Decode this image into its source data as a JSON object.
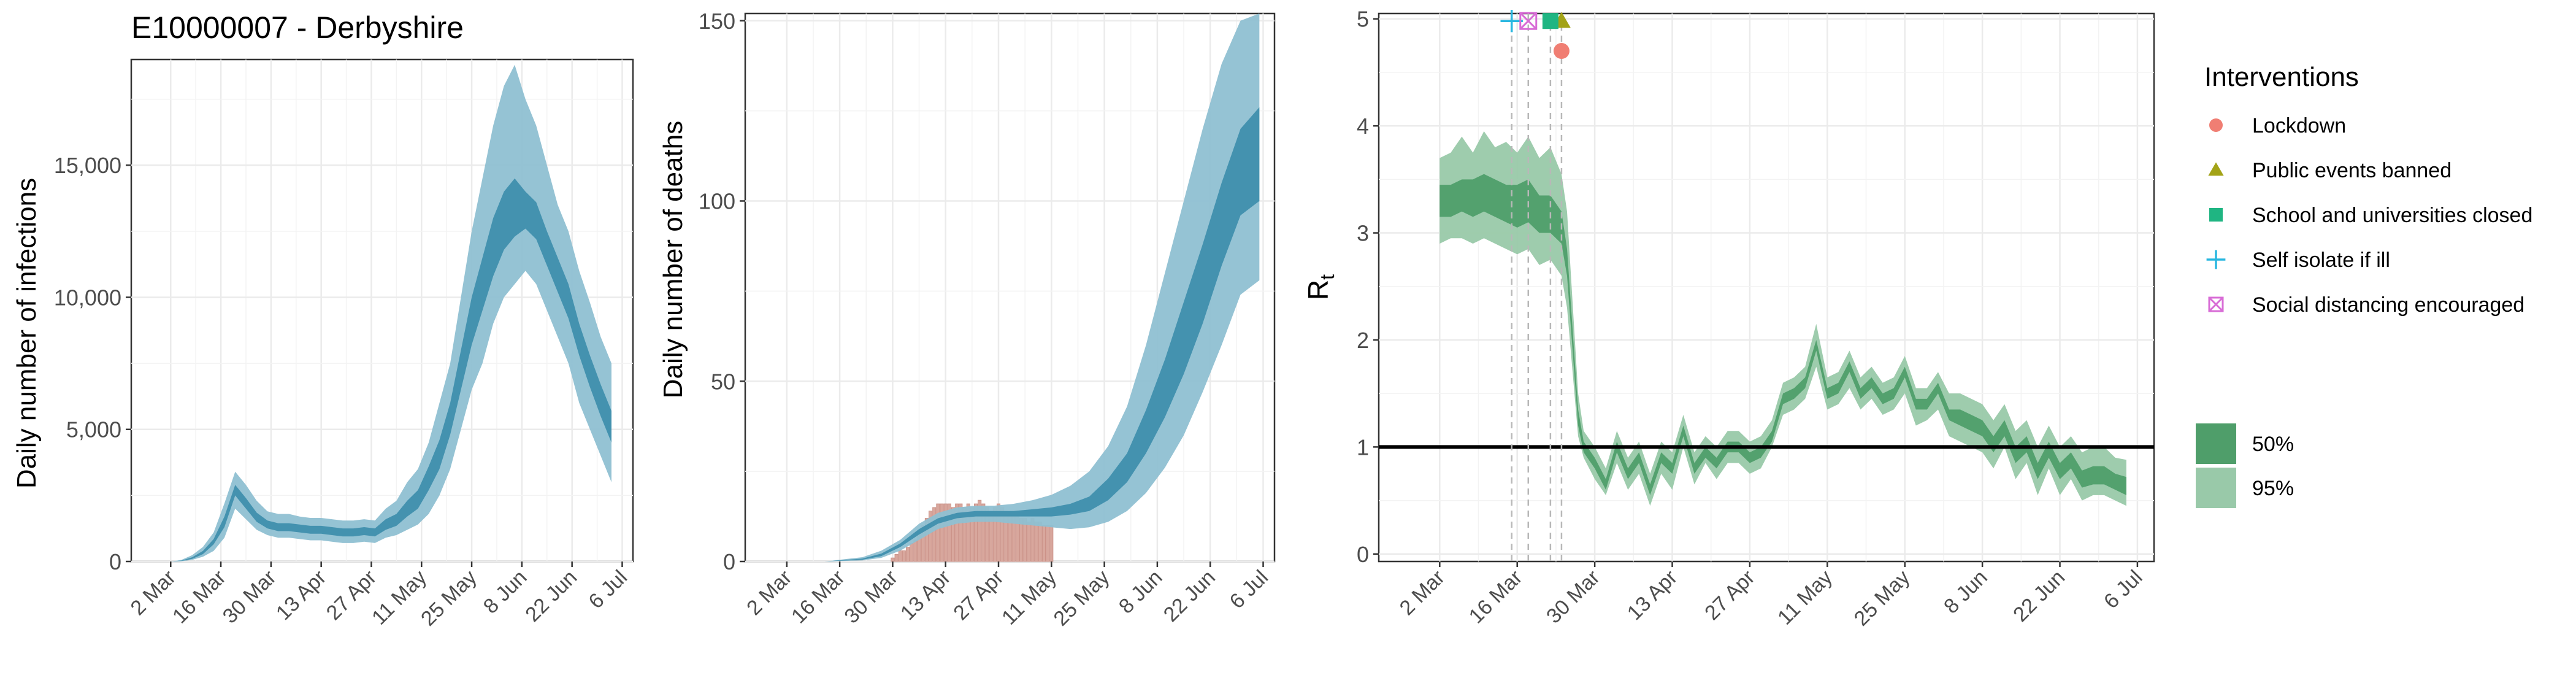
{
  "chart_data": [
    {
      "type": "area",
      "title": "E10000007 - Derbyshire",
      "ylabel": "Daily number of infections",
      "xlabel": "",
      "x_tick_labels": [
        "2 Mar",
        "16 Mar",
        "30 Mar",
        "13 Apr",
        "27 Apr",
        "11 May",
        "25 May",
        "8 Jun",
        "22 Jun",
        "6 Jul"
      ],
      "x_tick_days": [
        0,
        14,
        28,
        42,
        56,
        70,
        84,
        98,
        112,
        126
      ],
      "xlim_days": [
        -11,
        129
      ],
      "ylim": [
        0,
        19000
      ],
      "y_ticks": [
        0,
        5000,
        10000,
        15000
      ],
      "y_tick_labels": [
        "0",
        "5,000",
        "10,000",
        "15,000"
      ],
      "grid": true,
      "colors": {
        "band_95": "#8fc0d2",
        "band_50": "#3f8fad"
      },
      "bands": {
        "day": [
          0,
          3,
          6,
          9,
          12,
          15,
          18,
          21,
          24,
          27,
          30,
          33,
          36,
          39,
          42,
          45,
          48,
          51,
          54,
          57,
          60,
          63,
          66,
          69,
          72,
          75,
          78,
          81,
          84,
          87,
          90,
          93,
          96,
          99,
          102,
          105,
          108,
          111,
          114,
          117,
          120,
          123
        ],
        "lo95": [
          0,
          10,
          60,
          180,
          400,
          900,
          2000,
          1600,
          1200,
          1000,
          900,
          900,
          850,
          800,
          800,
          750,
          700,
          700,
          750,
          700,
          900,
          1000,
          1200,
          1400,
          1800,
          2500,
          3500,
          5000,
          6500,
          7500,
          9000,
          10000,
          10500,
          11000,
          10500,
          9500,
          8500,
          7500,
          6000,
          5000,
          4000,
          3000
        ],
        "lo50": [
          0,
          20,
          100,
          280,
          650,
          1300,
          2500,
          2000,
          1500,
          1250,
          1150,
          1150,
          1100,
          1050,
          1050,
          1000,
          950,
          950,
          1000,
          950,
          1200,
          1350,
          1700,
          2000,
          2700,
          3500,
          4800,
          6500,
          8200,
          9500,
          10800,
          11800,
          12300,
          12600,
          12200,
          11200,
          10200,
          9200,
          7800,
          6600,
          5500,
          4500
        ],
        "hi50": [
          0,
          35,
          160,
          400,
          850,
          1700,
          2900,
          2400,
          1850,
          1550,
          1450,
          1450,
          1400,
          1350,
          1350,
          1300,
          1250,
          1250,
          1300,
          1250,
          1600,
          1800,
          2300,
          2700,
          3600,
          4600,
          6000,
          8000,
          10000,
          11500,
          13000,
          14000,
          14500,
          14000,
          13600,
          12500,
          11500,
          10500,
          9000,
          7800,
          6700,
          5700
        ],
        "hi95": [
          0,
          60,
          240,
          550,
          1100,
          2200,
          3400,
          2900,
          2300,
          1900,
          1800,
          1800,
          1700,
          1650,
          1650,
          1600,
          1550,
          1550,
          1600,
          1550,
          2000,
          2300,
          3000,
          3500,
          4500,
          6000,
          7500,
          10000,
          12500,
          14500,
          16500,
          18000,
          18800,
          17500,
          16500,
          15000,
          13500,
          12500,
          11000,
          9800,
          8500,
          7500
        ]
      }
    },
    {
      "type": "area",
      "title": "",
      "ylabel": "Daily number of deaths",
      "xlabel": "",
      "x_tick_labels": [
        "2 Mar",
        "16 Mar",
        "30 Mar",
        "13 Apr",
        "27 Apr",
        "11 May",
        "25 May",
        "8 Jun",
        "22 Jun",
        "6 Jul"
      ],
      "x_tick_days": [
        0,
        14,
        28,
        42,
        56,
        70,
        84,
        98,
        112,
        126
      ],
      "xlim_days": [
        -11,
        129
      ],
      "ylim": [
        0,
        152
      ],
      "y_ticks": [
        0,
        50,
        100,
        150
      ],
      "y_tick_labels": [
        "0",
        "50",
        "100",
        "150"
      ],
      "grid": true,
      "colors": {
        "band_95": "#8fc0d2",
        "band_50": "#3f8fad",
        "bars": "#d8a79d"
      },
      "observed": {
        "day": [
          28,
          29,
          30,
          31,
          32,
          33,
          34,
          35,
          36,
          37,
          38,
          39,
          40,
          41,
          42,
          43,
          44,
          45,
          46,
          47,
          48,
          49,
          50,
          51,
          52,
          53,
          54,
          55,
          56,
          57,
          58,
          59,
          60,
          61,
          62,
          63,
          64,
          65,
          66,
          67,
          68,
          69,
          70
        ],
        "deaths": [
          1,
          2,
          3,
          3,
          4,
          5,
          6,
          8,
          10,
          12,
          14,
          15,
          16,
          16,
          16,
          16,
          15,
          16,
          16,
          15,
          16,
          15,
          16,
          17,
          16,
          15,
          14,
          15,
          16,
          15,
          14,
          13,
          14,
          13,
          12,
          12,
          11,
          12,
          11,
          11,
          10,
          10,
          10
        ]
      },
      "bands": {
        "day": [
          0,
          10,
          20,
          25,
          30,
          35,
          40,
          45,
          50,
          55,
          60,
          65,
          70,
          75,
          80,
          85,
          90,
          95,
          100,
          105,
          110,
          115,
          120,
          125
        ],
        "lo95": [
          0,
          0,
          0.3,
          1,
          3,
          6,
          9,
          10.5,
          11,
          11,
          10.5,
          10,
          9.5,
          9,
          9.5,
          11,
          14,
          19,
          26,
          35,
          47,
          60,
          74,
          78
        ],
        "lo50": [
          0,
          0,
          0.5,
          1.5,
          4,
          7.5,
          10.5,
          12,
          12.5,
          12.5,
          12.5,
          12.5,
          12.5,
          13,
          14,
          17,
          22,
          30,
          40,
          52,
          66,
          82,
          96,
          100
        ],
        "hi50": [
          0,
          0,
          0.8,
          2.2,
          5,
          9,
          12,
          13.5,
          14,
          14,
          14,
          14.5,
          15,
          16,
          18,
          23,
          30,
          42,
          56,
          72,
          88,
          105,
          120,
          126
        ],
        "hi95": [
          0,
          0,
          1.2,
          3,
          6,
          10.5,
          13.5,
          15,
          15.5,
          15.5,
          16,
          17,
          18.5,
          21,
          25,
          32,
          43,
          60,
          80,
          100,
          120,
          138,
          150,
          152
        ]
      }
    },
    {
      "type": "area",
      "title": "",
      "ylabel": "R",
      "ylabel_subscript": "t",
      "xlabel": "",
      "x_tick_labels": [
        "2 Mar",
        "16 Mar",
        "30 Mar",
        "13 Apr",
        "27 Apr",
        "11 May",
        "25 May",
        "8 Jun",
        "22 Jun",
        "6 Jul"
      ],
      "x_tick_days": [
        0,
        14,
        28,
        42,
        56,
        70,
        84,
        98,
        112,
        126
      ],
      "xlim_days": [
        -11,
        129
      ],
      "ylim": [
        -0.07,
        5.05
      ],
      "y_ticks": [
        0,
        1,
        2,
        3,
        4,
        5
      ],
      "y_tick_labels": [
        "0",
        "1",
        "2",
        "3",
        "4",
        "5"
      ],
      "reference_line_y": 1,
      "grid": true,
      "colors": {
        "band_95": "#99c9a9",
        "band_50": "#4f9e6a"
      },
      "bands": {
        "day": [
          0,
          2,
          4,
          6,
          8,
          10,
          12,
          14,
          16,
          18,
          20,
          22,
          23,
          24,
          25,
          26,
          28,
          30,
          32,
          34,
          36,
          38,
          40,
          42,
          44,
          46,
          48,
          50,
          52,
          54,
          56,
          58,
          60,
          62,
          64,
          66,
          68,
          70,
          72,
          74,
          76,
          78,
          80,
          82,
          84,
          86,
          88,
          90,
          92,
          94,
          96,
          98,
          100,
          102,
          104,
          106,
          108,
          110,
          112,
          114,
          116,
          118,
          120,
          122,
          124
        ],
        "lo95": [
          2.9,
          2.95,
          2.95,
          2.9,
          2.95,
          2.9,
          2.85,
          2.8,
          2.85,
          2.7,
          2.75,
          2.6,
          2.3,
          1.7,
          1.1,
          0.9,
          0.7,
          0.55,
          0.85,
          0.6,
          0.75,
          0.45,
          0.75,
          0.6,
          1.0,
          0.65,
          0.85,
          0.7,
          0.85,
          0.85,
          0.75,
          0.8,
          1.0,
          1.3,
          1.35,
          1.45,
          1.75,
          1.35,
          1.4,
          1.55,
          1.35,
          1.45,
          1.3,
          1.35,
          1.5,
          1.2,
          1.25,
          1.35,
          1.1,
          1.05,
          1.0,
          0.95,
          0.8,
          1.0,
          0.7,
          0.85,
          0.55,
          0.8,
          0.55,
          0.7,
          0.5,
          0.55,
          0.55,
          0.5,
          0.45
        ],
        "lo50": [
          3.15,
          3.15,
          3.2,
          3.15,
          3.2,
          3.15,
          3.1,
          3.05,
          3.1,
          3.0,
          3.0,
          2.9,
          2.6,
          1.9,
          1.2,
          0.95,
          0.8,
          0.6,
          0.95,
          0.7,
          0.85,
          0.55,
          0.85,
          0.75,
          1.1,
          0.75,
          0.9,
          0.8,
          0.95,
          0.95,
          0.85,
          0.9,
          1.05,
          1.4,
          1.45,
          1.55,
          1.9,
          1.45,
          1.5,
          1.7,
          1.45,
          1.55,
          1.4,
          1.45,
          1.65,
          1.35,
          1.35,
          1.5,
          1.25,
          1.2,
          1.15,
          1.1,
          0.95,
          1.1,
          0.85,
          0.95,
          0.7,
          0.9,
          0.7,
          0.8,
          0.62,
          0.65,
          0.65,
          0.6,
          0.55
        ],
        "hi50": [
          3.45,
          3.45,
          3.5,
          3.5,
          3.55,
          3.5,
          3.45,
          3.45,
          3.5,
          3.35,
          3.35,
          3.2,
          2.85,
          2.1,
          1.35,
          1.05,
          0.9,
          0.7,
          1.05,
          0.8,
          0.95,
          0.65,
          0.95,
          0.85,
          1.2,
          0.85,
          1.0,
          0.9,
          1.05,
          1.05,
          0.95,
          1.0,
          1.15,
          1.5,
          1.55,
          1.65,
          2.0,
          1.55,
          1.6,
          1.8,
          1.55,
          1.65,
          1.5,
          1.55,
          1.75,
          1.45,
          1.45,
          1.6,
          1.35,
          1.35,
          1.3,
          1.25,
          1.1,
          1.25,
          1.0,
          1.1,
          0.85,
          1.05,
          0.85,
          0.95,
          0.78,
          0.82,
          0.82,
          0.75,
          0.72
        ],
        "hi95": [
          3.7,
          3.75,
          3.9,
          3.75,
          3.95,
          3.8,
          3.85,
          3.75,
          3.9,
          3.7,
          3.8,
          3.55,
          3.2,
          2.35,
          1.5,
          1.15,
          1.0,
          0.8,
          1.15,
          0.9,
          1.05,
          0.75,
          1.05,
          0.95,
          1.3,
          0.95,
          1.1,
          1.0,
          1.15,
          1.15,
          1.05,
          1.1,
          1.25,
          1.6,
          1.65,
          1.75,
          2.15,
          1.65,
          1.7,
          1.9,
          1.65,
          1.75,
          1.6,
          1.65,
          1.85,
          1.55,
          1.55,
          1.7,
          1.5,
          1.5,
          1.45,
          1.4,
          1.25,
          1.4,
          1.15,
          1.25,
          1.0,
          1.2,
          1.0,
          1.1,
          0.95,
          1.0,
          1.0,
          0.9,
          0.88
        ]
      },
      "interventions": [
        {
          "name": "Lockdown",
          "day": 22,
          "y": 4.7,
          "shape": "circle",
          "color": "#f07e73"
        },
        {
          "name": "Public events banned",
          "day": 22,
          "y": 4.98,
          "shape": "triangle",
          "color": "#a3a317"
        },
        {
          "name": "School and universities closed",
          "day": 20,
          "y": 4.98,
          "shape": "square",
          "color": "#1fb582"
        },
        {
          "name": "Self isolate if ill",
          "day": 13,
          "y": 4.98,
          "shape": "plus",
          "color": "#2ab7e0"
        },
        {
          "name": "Social distancing encouraged",
          "day": 16,
          "y": 4.98,
          "shape": "boxx",
          "color": "#d86cd6"
        }
      ],
      "legend": {
        "title": "Interventions",
        "placement": "right",
        "band_labels": [
          "50%",
          "95%"
        ]
      }
    }
  ]
}
